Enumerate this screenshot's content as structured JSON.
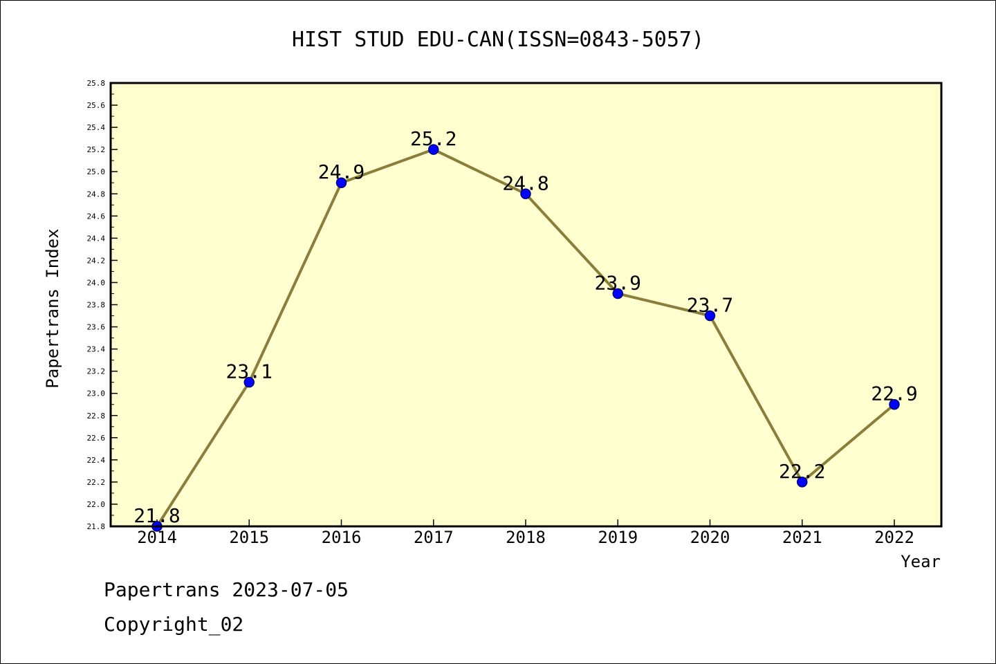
{
  "chart_data": {
    "type": "line",
    "title": "HIST STUD EDU-CAN(ISSN=0843-5057)",
    "xlabel": "Year",
    "ylabel": "Papertrans Index",
    "x": [
      "2014",
      "2015",
      "2016",
      "2017",
      "2018",
      "2019",
      "2020",
      "2021",
      "2022"
    ],
    "series": [
      {
        "values": [
          21.8,
          23.1,
          24.9,
          25.2,
          24.8,
          23.9,
          23.7,
          22.2,
          22.9
        ]
      }
    ],
    "data_labels": [
      "21.8",
      "23.1",
      "24.9",
      "25.2",
      "24.8",
      "23.9",
      "23.7",
      "22.2",
      "22.9"
    ],
    "ylim": [
      21.8,
      25.8
    ],
    "yticks": [
      "21.8",
      "22.0",
      "22.2",
      "22.4",
      "22.6",
      "22.8",
      "23.0",
      "23.2",
      "23.4",
      "23.6",
      "23.8",
      "24.0",
      "24.2",
      "24.4",
      "24.6",
      "24.8",
      "25.0",
      "25.2",
      "25.4",
      "25.6",
      "25.8"
    ],
    "grid": false,
    "colors": {
      "plot_background": "#ffffd0",
      "line": "#8b7d3a",
      "marker": "#0000ff"
    }
  },
  "footer": {
    "line1": "Papertrans 2023-07-05",
    "line2": "Copyright_02"
  }
}
